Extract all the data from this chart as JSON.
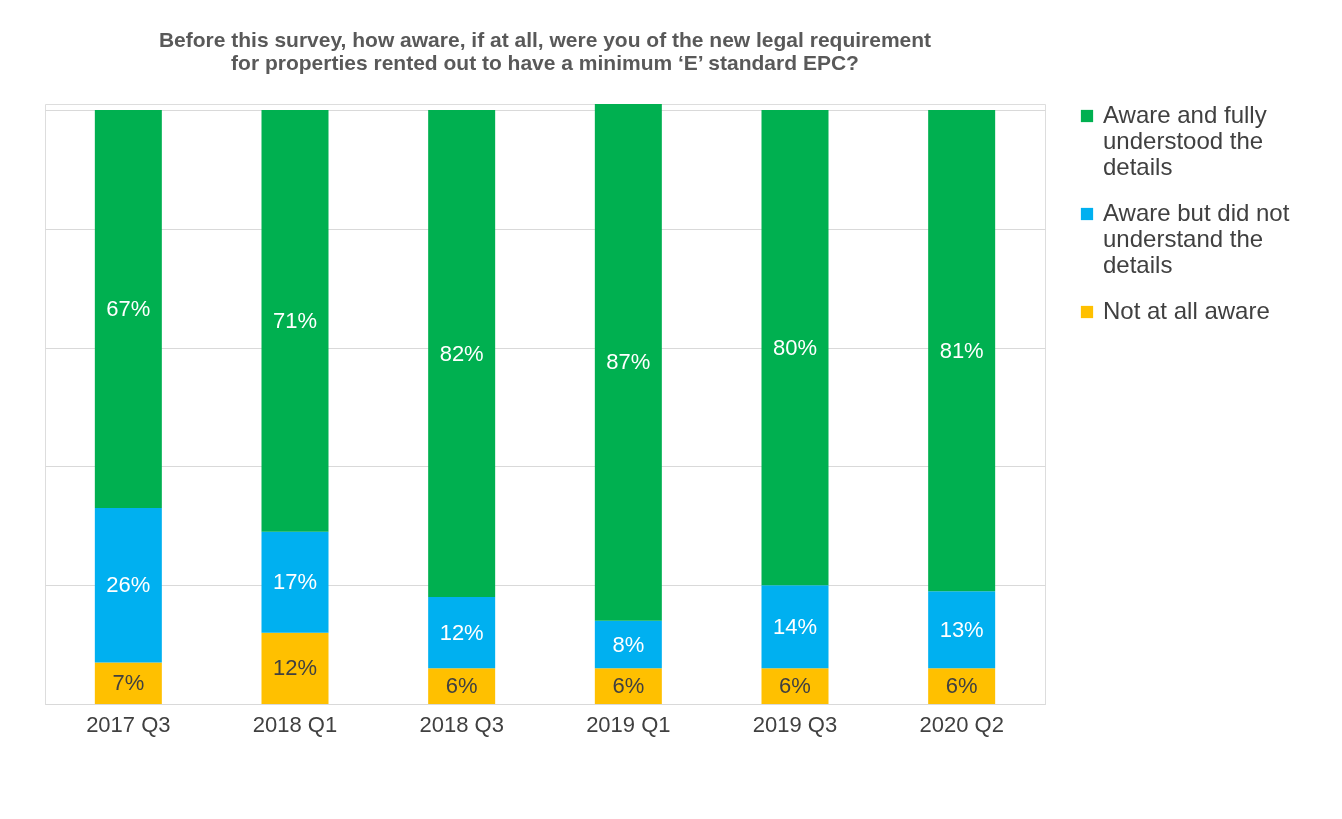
{
  "chart_data": {
    "type": "bar",
    "stacked": true,
    "title": "Before this survey, how aware, if at all, were you of the new legal requirement for properties rented out to have a minimum ‘E’ standard EPC?",
    "categories": [
      "2017 Q3",
      "2018 Q1",
      "2018 Q3",
      "2019 Q1",
      "2019 Q3",
      "2020 Q2"
    ],
    "series": [
      {
        "name": "Not at all aware",
        "color": "#ffc000",
        "values": [
          7,
          12,
          6,
          6,
          6,
          6
        ],
        "value_labels": [
          "7%",
          "12%",
          "6%",
          "6%",
          "6%",
          "6%"
        ]
      },
      {
        "name": "Aware but did not understand the details",
        "color": "#00b0f0",
        "values": [
          26,
          17,
          12,
          8,
          14,
          13
        ],
        "value_labels": [
          "26%",
          "17%",
          "12%",
          "8%",
          "14%",
          "13%"
        ]
      },
      {
        "name": "Aware and fully understood the details",
        "color": "#00b050",
        "values": [
          67,
          71,
          82,
          87,
          80,
          81
        ],
        "value_labels": [
          "67%",
          "71%",
          "82%",
          "87%",
          "80%",
          "81%"
        ]
      }
    ],
    "grid": "y",
    "legend": "right",
    "tick_labels": "x"
  }
}
